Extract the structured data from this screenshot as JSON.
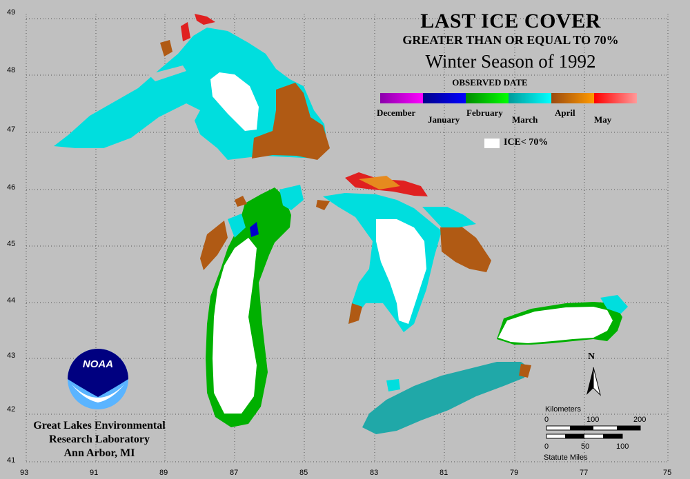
{
  "title": "LAST ICE COVER",
  "subtitle": "GREATER THAN OR EQUAL TO 70%",
  "season": "Winter Season of 1992",
  "legend": {
    "title": "OBSERVED DATE",
    "months": [
      "December",
      "January",
      "February",
      "March",
      "April",
      "May"
    ],
    "colors": [
      "#9900bb",
      "#0000cc",
      "#00b000",
      "#00c8c8",
      "#b05a14",
      "#ff2020"
    ],
    "ice_label": "ICE< 70%"
  },
  "axes": {
    "longitude_ticks": [
      "93",
      "91",
      "89",
      "87",
      "85",
      "83",
      "81",
      "79",
      "77",
      "75"
    ],
    "latitude_ticks": [
      "49",
      "48",
      "47",
      "46",
      "45",
      "44",
      "43",
      "42",
      "41"
    ]
  },
  "scale": {
    "km_label": "Kilometers",
    "km_ticks": [
      "0",
      "100",
      "200"
    ],
    "mi_ticks": [
      "0",
      "50",
      "100"
    ],
    "mi_label": "Statute Miles"
  },
  "north_label": "N",
  "logo_text": "NOAA",
  "lab": {
    "line1": "Great Lakes Environmental",
    "line2": "Research Laboratory",
    "line3": "Ann Arbor, MI"
  }
}
